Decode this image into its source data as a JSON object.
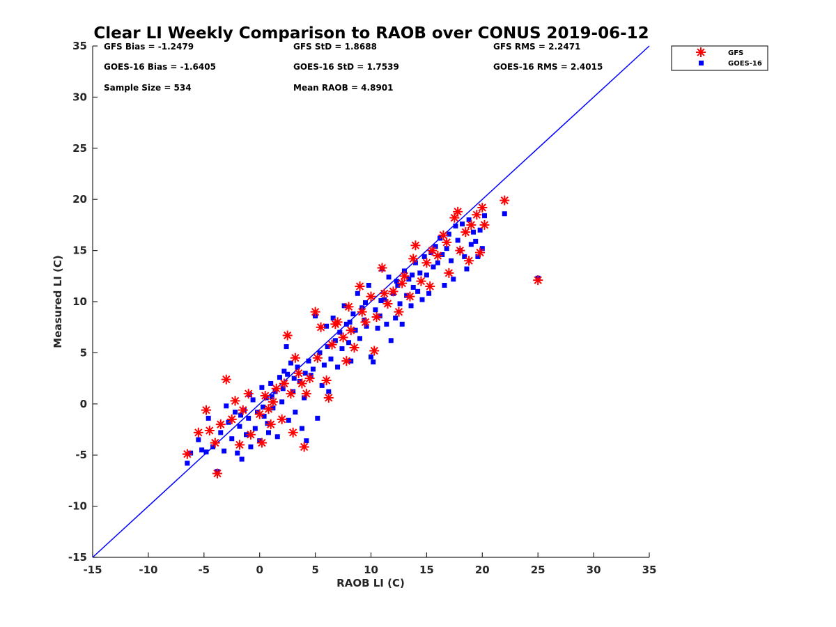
{
  "chart_data": {
    "type": "scatter",
    "title": "Clear LI Weekly Comparison to RAOB over CONUS 2019-06-12",
    "xlabel": "RAOB LI (C)",
    "ylabel": "Measured LI (C)",
    "xlim": [
      -15,
      35
    ],
    "ylim": [
      -15,
      35
    ],
    "xticks": [
      "-15",
      "-10",
      "-5",
      "0",
      "5",
      "10",
      "15",
      "20",
      "25",
      "30",
      "35"
    ],
    "yticks": [
      "-15",
      "-10",
      "-5",
      "0",
      "5",
      "10",
      "15",
      "20",
      "25",
      "30",
      "35"
    ],
    "grid": false,
    "legend_position": "outside top-right",
    "reference_line": {
      "x": [
        -15,
        35
      ],
      "y": [
        -15,
        35
      ],
      "color": "#0000ff"
    },
    "stats": {
      "gfs_bias": "GFS Bias = -1.2479",
      "goes_bias": "GOES-16 Bias = -1.6405",
      "sample_size": "Sample Size = 534",
      "gfs_std": "GFS StD = 1.8688",
      "goes_std": "GOES-16 StD = 1.7539",
      "mean_raob": "Mean RAOB = 4.8901",
      "gfs_rms": "GFS RMS = 2.2471",
      "goes_rms": "GOES-16 RMS = 2.4015"
    },
    "series": [
      {
        "name": "GFS",
        "marker": "asterisk",
        "color": "#ff0000",
        "points": [
          [
            -6.5,
            -4.9
          ],
          [
            -5.5,
            -2.8
          ],
          [
            -4.8,
            -0.6
          ],
          [
            -4.5,
            -2.6
          ],
          [
            -3.8,
            -6.8
          ],
          [
            -3.0,
            2.4
          ],
          [
            -2.2,
            0.3
          ],
          [
            -1.5,
            -0.6
          ],
          [
            -0.8,
            -3.0
          ],
          [
            0.2,
            -3.8
          ],
          [
            0.5,
            0.8
          ],
          [
            1.0,
            -2.0
          ],
          [
            1.5,
            1.5
          ],
          [
            2.0,
            -1.5
          ],
          [
            2.5,
            6.7
          ],
          [
            2.8,
            1.0
          ],
          [
            3.0,
            -2.8
          ],
          [
            3.5,
            3.0
          ],
          [
            4.0,
            -4.2
          ],
          [
            4.5,
            2.5
          ],
          [
            5.0,
            9.0
          ],
          [
            5.2,
            4.5
          ],
          [
            5.5,
            7.5
          ],
          [
            6.0,
            2.3
          ],
          [
            6.2,
            0.6
          ],
          [
            6.5,
            5.8
          ],
          [
            7.0,
            8.0
          ],
          [
            7.5,
            6.5
          ],
          [
            8.0,
            9.5
          ],
          [
            8.5,
            5.5
          ],
          [
            9.0,
            11.5
          ],
          [
            9.5,
            8.0
          ],
          [
            10.0,
            10.5
          ],
          [
            10.3,
            5.2
          ],
          [
            10.5,
            8.5
          ],
          [
            11.0,
            13.3
          ],
          [
            11.5,
            9.8
          ],
          [
            12.0,
            11.0
          ],
          [
            12.5,
            9.0
          ],
          [
            13.0,
            12.5
          ],
          [
            13.5,
            10.5
          ],
          [
            14.0,
            15.5
          ],
          [
            14.5,
            12.0
          ],
          [
            15.0,
            13.8
          ],
          [
            15.3,
            11.5
          ],
          [
            15.5,
            15.0
          ],
          [
            16.0,
            14.5
          ],
          [
            16.5,
            16.5
          ],
          [
            17.0,
            12.8
          ],
          [
            17.5,
            18.2
          ],
          [
            17.8,
            18.8
          ],
          [
            18.0,
            15.0
          ],
          [
            18.5,
            16.8
          ],
          [
            18.8,
            14.0
          ],
          [
            19.0,
            17.5
          ],
          [
            19.5,
            18.5
          ],
          [
            19.8,
            14.8
          ],
          [
            20.0,
            19.2
          ],
          [
            20.2,
            17.5
          ],
          [
            22.0,
            19.9
          ],
          [
            25.0,
            12.1
          ],
          [
            -2.5,
            -1.5
          ],
          [
            -1.0,
            1.0
          ],
          [
            0.0,
            -1.0
          ],
          [
            1.2,
            0.2
          ],
          [
            2.2,
            2.0
          ],
          [
            3.2,
            4.5
          ],
          [
            4.2,
            1.0
          ],
          [
            6.8,
            7.8
          ],
          [
            8.2,
            7.2
          ],
          [
            9.2,
            9.0
          ],
          [
            11.2,
            10.8
          ],
          [
            12.8,
            11.8
          ],
          [
            -4.0,
            -3.8
          ],
          [
            -3.5,
            -2.0
          ],
          [
            -1.8,
            -4.0
          ],
          [
            0.8,
            -0.5
          ],
          [
            3.8,
            2.0
          ],
          [
            7.8,
            4.2
          ],
          [
            13.8,
            14.2
          ],
          [
            16.8,
            15.8
          ]
        ]
      },
      {
        "name": "GOES-16",
        "marker": "square",
        "color": "#0000ff",
        "points": [
          [
            -6.5,
            -5.8
          ],
          [
            -6.2,
            -4.8
          ],
          [
            -5.5,
            -3.5
          ],
          [
            -5.2,
            -4.5
          ],
          [
            -4.8,
            -4.7
          ],
          [
            -4.6,
            -1.4
          ],
          [
            -4.2,
            -4.2
          ],
          [
            -3.8,
            -6.6
          ],
          [
            -3.5,
            -2.8
          ],
          [
            -3.2,
            -4.6
          ],
          [
            -3.0,
            -0.2
          ],
          [
            -2.8,
            -1.8
          ],
          [
            -2.5,
            -3.4
          ],
          [
            -2.2,
            -0.8
          ],
          [
            -2.0,
            -4.8
          ],
          [
            -1.8,
            -2.2
          ],
          [
            -1.6,
            -5.4
          ],
          [
            -1.4,
            -0.6
          ],
          [
            -1.2,
            -3.0
          ],
          [
            -1.0,
            -1.4
          ],
          [
            -0.8,
            -4.2
          ],
          [
            -0.6,
            0.4
          ],
          [
            -0.4,
            -2.4
          ],
          [
            -0.2,
            -0.8
          ],
          [
            0.0,
            -3.6
          ],
          [
            0.2,
            1.6
          ],
          [
            0.4,
            -1.2
          ],
          [
            0.6,
            0.6
          ],
          [
            0.8,
            -2.8
          ],
          [
            1.0,
            2.0
          ],
          [
            1.2,
            -0.4
          ],
          [
            1.4,
            1.2
          ],
          [
            1.6,
            -3.2
          ],
          [
            1.8,
            2.6
          ],
          [
            2.0,
            0.2
          ],
          [
            2.2,
            3.2
          ],
          [
            2.4,
            5.6
          ],
          [
            2.6,
            -1.6
          ],
          [
            2.8,
            4.0
          ],
          [
            3.0,
            1.2
          ],
          [
            3.2,
            -0.8
          ],
          [
            3.4,
            3.6
          ],
          [
            3.6,
            2.2
          ],
          [
            3.8,
            -2.4
          ],
          [
            4.0,
            0.6
          ],
          [
            4.2,
            -3.6
          ],
          [
            4.4,
            4.2
          ],
          [
            4.6,
            2.8
          ],
          [
            4.8,
            3.4
          ],
          [
            5.0,
            8.6
          ],
          [
            5.2,
            -1.4
          ],
          [
            5.4,
            5.0
          ],
          [
            5.6,
            1.8
          ],
          [
            5.8,
            3.8
          ],
          [
            6.0,
            7.6
          ],
          [
            6.2,
            1.2
          ],
          [
            6.4,
            4.4
          ],
          [
            6.6,
            8.4
          ],
          [
            6.8,
            6.2
          ],
          [
            7.0,
            3.6
          ],
          [
            7.2,
            7.0
          ],
          [
            7.4,
            5.4
          ],
          [
            7.6,
            9.6
          ],
          [
            7.8,
            7.8
          ],
          [
            8.0,
            6.0
          ],
          [
            8.2,
            4.2
          ],
          [
            8.4,
            8.8
          ],
          [
            8.6,
            7.2
          ],
          [
            8.8,
            10.8
          ],
          [
            9.0,
            6.4
          ],
          [
            9.2,
            9.4
          ],
          [
            9.4,
            8.2
          ],
          [
            9.6,
            7.6
          ],
          [
            9.8,
            11.6
          ],
          [
            10.0,
            4.6
          ],
          [
            10.2,
            4.1
          ],
          [
            10.4,
            9.2
          ],
          [
            10.6,
            7.4
          ],
          [
            10.8,
            8.6
          ],
          [
            11.0,
            13.2
          ],
          [
            11.2,
            10.2
          ],
          [
            11.4,
            7.8
          ],
          [
            11.6,
            12.4
          ],
          [
            11.8,
            6.2
          ],
          [
            12.0,
            10.8
          ],
          [
            12.2,
            8.4
          ],
          [
            12.4,
            11.6
          ],
          [
            12.6,
            9.8
          ],
          [
            12.8,
            7.8
          ],
          [
            13.0,
            13.0
          ],
          [
            13.2,
            10.6
          ],
          [
            13.4,
            12.2
          ],
          [
            13.6,
            9.6
          ],
          [
            13.8,
            11.4
          ],
          [
            14.0,
            13.8
          ],
          [
            14.2,
            11.0
          ],
          [
            14.4,
            12.8
          ],
          [
            14.6,
            10.2
          ],
          [
            14.8,
            14.4
          ],
          [
            15.0,
            12.6
          ],
          [
            15.2,
            10.8
          ],
          [
            15.4,
            14.8
          ],
          [
            15.6,
            13.4
          ],
          [
            15.8,
            15.4
          ],
          [
            16.0,
            13.8
          ],
          [
            16.2,
            16.2
          ],
          [
            16.4,
            14.6
          ],
          [
            16.6,
            11.6
          ],
          [
            16.8,
            15.2
          ],
          [
            17.0,
            16.6
          ],
          [
            17.2,
            14.0
          ],
          [
            17.4,
            12.2
          ],
          [
            17.6,
            17.4
          ],
          [
            17.8,
            16.0
          ],
          [
            18.0,
            15.0
          ],
          [
            18.2,
            17.6
          ],
          [
            18.4,
            14.4
          ],
          [
            18.6,
            13.2
          ],
          [
            18.8,
            18.0
          ],
          [
            19.0,
            15.6
          ],
          [
            19.2,
            16.8
          ],
          [
            19.4,
            15.9
          ],
          [
            19.6,
            14.4
          ],
          [
            19.8,
            17.0
          ],
          [
            20.0,
            15.2
          ],
          [
            20.2,
            18.4
          ],
          [
            22.0,
            18.6
          ],
          [
            25.0,
            12.3
          ],
          [
            -0.9,
            0.9
          ],
          [
            0.3,
            -0.3
          ],
          [
            1.1,
            0.7
          ],
          [
            2.1,
            1.5
          ],
          [
            3.1,
            2.5
          ],
          [
            -1.7,
            -1.1
          ],
          [
            0.7,
            -1.9
          ],
          [
            2.5,
            2.9
          ],
          [
            4.1,
            3.0
          ],
          [
            6.1,
            5.6
          ],
          [
            8.1,
            8.0
          ],
          [
            9.5,
            9.9
          ],
          [
            10.9,
            10.1
          ],
          [
            12.3,
            12.0
          ],
          [
            13.7,
            12.6
          ]
        ]
      }
    ]
  }
}
